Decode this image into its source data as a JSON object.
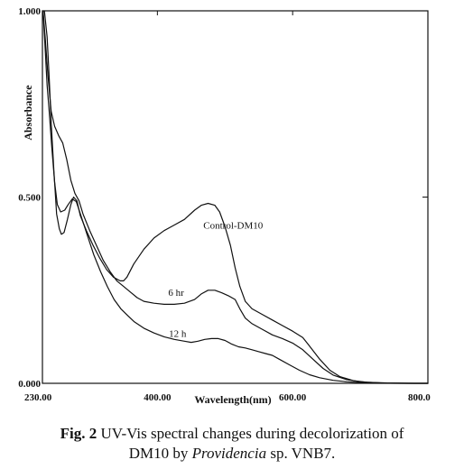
{
  "chart_data": {
    "type": "line",
    "xlabel": "Wavelength(nm)",
    "ylabel": "Absorbance",
    "xlim": [
      230,
      800
    ],
    "ylim": [
      0,
      1
    ],
    "x_ticks": [
      "230.00",
      "400.00",
      "600.00",
      "800.0"
    ],
    "x_tick_values": [
      230,
      400,
      600,
      800
    ],
    "y_ticks": [
      "0.000",
      "0.500",
      "1.000"
    ],
    "y_tick_values": [
      0,
      0.5,
      1.0
    ],
    "grid": false,
    "series": [
      {
        "name": "Control-DM10",
        "label_at": [
          468,
          0.415
        ],
        "points": [
          [
            233,
            1.0
          ],
          [
            237,
            0.93
          ],
          [
            240,
            0.82
          ],
          [
            243,
            0.7
          ],
          [
            247,
            0.57
          ],
          [
            251,
            0.455
          ],
          [
            255,
            0.415
          ],
          [
            258,
            0.4
          ],
          [
            262,
            0.405
          ],
          [
            267,
            0.44
          ],
          [
            272,
            0.48
          ],
          [
            276,
            0.5
          ],
          [
            281,
            0.49
          ],
          [
            286,
            0.45
          ],
          [
            295,
            0.41
          ],
          [
            305,
            0.37
          ],
          [
            315,
            0.335
          ],
          [
            325,
            0.305
          ],
          [
            335,
            0.285
          ],
          [
            345,
            0.275
          ],
          [
            350,
            0.275
          ],
          [
            355,
            0.285
          ],
          [
            365,
            0.32
          ],
          [
            380,
            0.36
          ],
          [
            395,
            0.39
          ],
          [
            410,
            0.41
          ],
          [
            425,
            0.425
          ],
          [
            440,
            0.44
          ],
          [
            455,
            0.465
          ],
          [
            465,
            0.478
          ],
          [
            475,
            0.483
          ],
          [
            485,
            0.478
          ],
          [
            492,
            0.46
          ],
          [
            500,
            0.42
          ],
          [
            508,
            0.37
          ],
          [
            515,
            0.31
          ],
          [
            522,
            0.26
          ],
          [
            530,
            0.22
          ],
          [
            540,
            0.2
          ],
          [
            555,
            0.185
          ],
          [
            570,
            0.17
          ],
          [
            585,
            0.155
          ],
          [
            600,
            0.14
          ],
          [
            615,
            0.123
          ],
          [
            625,
            0.1
          ],
          [
            640,
            0.065
          ],
          [
            655,
            0.035
          ],
          [
            670,
            0.018
          ],
          [
            690,
            0.007
          ],
          [
            710,
            0.003
          ],
          [
            740,
            0.001
          ],
          [
            780,
            0.0
          ],
          [
            800,
            0.0
          ]
        ]
      },
      {
        "name": "6 hr",
        "label_at": [
          416,
          0.235
        ],
        "points": [
          [
            231,
            1.0
          ],
          [
            234,
            0.93
          ],
          [
            238,
            0.83
          ],
          [
            243,
            0.73
          ],
          [
            248,
            0.69
          ],
          [
            254,
            0.665
          ],
          [
            260,
            0.645
          ],
          [
            266,
            0.6
          ],
          [
            272,
            0.545
          ],
          [
            278,
            0.51
          ],
          [
            284,
            0.49
          ],
          [
            290,
            0.455
          ],
          [
            300,
            0.41
          ],
          [
            310,
            0.37
          ],
          [
            320,
            0.33
          ],
          [
            330,
            0.3
          ],
          [
            340,
            0.275
          ],
          [
            350,
            0.26
          ],
          [
            360,
            0.245
          ],
          [
            370,
            0.23
          ],
          [
            380,
            0.22
          ],
          [
            395,
            0.215
          ],
          [
            410,
            0.212
          ],
          [
            425,
            0.212
          ],
          [
            440,
            0.215
          ],
          [
            455,
            0.225
          ],
          [
            465,
            0.24
          ],
          [
            475,
            0.25
          ],
          [
            485,
            0.25
          ],
          [
            495,
            0.243
          ],
          [
            505,
            0.235
          ],
          [
            515,
            0.225
          ],
          [
            522,
            0.2
          ],
          [
            530,
            0.175
          ],
          [
            540,
            0.16
          ],
          [
            555,
            0.145
          ],
          [
            570,
            0.13
          ],
          [
            585,
            0.12
          ],
          [
            600,
            0.108
          ],
          [
            615,
            0.09
          ],
          [
            630,
            0.065
          ],
          [
            645,
            0.04
          ],
          [
            660,
            0.022
          ],
          [
            680,
            0.01
          ],
          [
            700,
            0.004
          ],
          [
            730,
            0.001
          ],
          [
            770,
            0.0
          ],
          [
            800,
            0.0
          ]
        ]
      },
      {
        "name": "12 h",
        "label_at": [
          417,
          0.125
        ],
        "points": [
          [
            231,
            1.0
          ],
          [
            234,
            0.9
          ],
          [
            237,
            0.8
          ],
          [
            240,
            0.73
          ],
          [
            244,
            0.63
          ],
          [
            248,
            0.54
          ],
          [
            252,
            0.48
          ],
          [
            257,
            0.46
          ],
          [
            263,
            0.465
          ],
          [
            268,
            0.48
          ],
          [
            274,
            0.495
          ],
          [
            280,
            0.488
          ],
          [
            286,
            0.455
          ],
          [
            296,
            0.4
          ],
          [
            306,
            0.345
          ],
          [
            316,
            0.3
          ],
          [
            326,
            0.26
          ],
          [
            336,
            0.225
          ],
          [
            346,
            0.2
          ],
          [
            356,
            0.182
          ],
          [
            366,
            0.165
          ],
          [
            380,
            0.148
          ],
          [
            395,
            0.135
          ],
          [
            410,
            0.125
          ],
          [
            425,
            0.118
          ],
          [
            440,
            0.113
          ],
          [
            450,
            0.11
          ],
          [
            460,
            0.113
          ],
          [
            470,
            0.118
          ],
          [
            480,
            0.12
          ],
          [
            490,
            0.12
          ],
          [
            500,
            0.115
          ],
          [
            510,
            0.105
          ],
          [
            520,
            0.098
          ],
          [
            530,
            0.095
          ],
          [
            540,
            0.09
          ],
          [
            550,
            0.085
          ],
          [
            560,
            0.08
          ],
          [
            570,
            0.075
          ],
          [
            580,
            0.065
          ],
          [
            595,
            0.05
          ],
          [
            610,
            0.035
          ],
          [
            625,
            0.023
          ],
          [
            640,
            0.015
          ],
          [
            660,
            0.008
          ],
          [
            680,
            0.004
          ],
          [
            710,
            0.001
          ],
          [
            760,
            0.0
          ],
          [
            800,
            0.0
          ]
        ]
      }
    ]
  },
  "caption": {
    "fig_label": "Fig. 2",
    "text_1": " UV-Vis spectral changes during decolorization of",
    "text_2": "DM10 by ",
    "species": "Providencia",
    "text_3": " sp. VNB7."
  }
}
